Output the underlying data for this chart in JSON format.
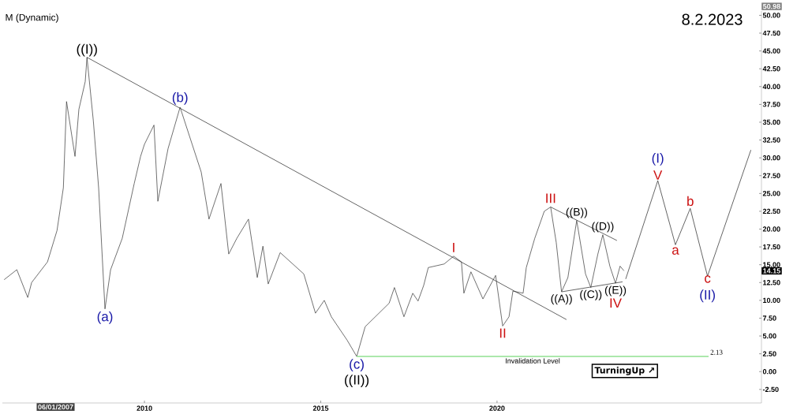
{
  "chart_data": {
    "type": "line",
    "title": "M (Dynamic)",
    "subtitle": "8.2.2023",
    "xlim": [
      2005.97,
      2027.5
    ],
    "ylim": [
      -4.4,
      50.6
    ],
    "xticks": [
      2010,
      2015,
      2020
    ],
    "yticks": [
      {
        "value": -2.5,
        "label": "-2.50"
      },
      {
        "value": 0,
        "label": "0.00"
      },
      {
        "value": 2.5,
        "label": "2.50"
      },
      {
        "value": 5,
        "label": "5.00"
      },
      {
        "value": 7.5,
        "label": "7.50"
      },
      {
        "value": 10,
        "label": "10.00"
      },
      {
        "value": 12.5,
        "label": "12.50"
      },
      {
        "value": 15,
        "label": "15.00"
      },
      {
        "value": 17.5,
        "label": "17.50"
      },
      {
        "value": 20,
        "label": "20.00"
      },
      {
        "value": 22.5,
        "label": "22.50"
      },
      {
        "value": 25,
        "label": "25.00"
      },
      {
        "value": 27.5,
        "label": "27.50"
      },
      {
        "value": 30,
        "label": "30.00"
      },
      {
        "value": 32.5,
        "label": "32.50"
      },
      {
        "value": 35,
        "label": "35.00"
      },
      {
        "value": 37.5,
        "label": "37.50"
      },
      {
        "value": 40,
        "label": "40.00"
      },
      {
        "value": 42.5,
        "label": "42.50"
      },
      {
        "value": 45,
        "label": "45.00"
      },
      {
        "value": 47.5,
        "label": "47.50"
      },
      {
        "value": 50,
        "label": "50.00"
      }
    ],
    "series": [
      {
        "color": "#333333",
        "x": [
          2006.02,
          2006.38,
          2006.69,
          2006.8,
          2007.25,
          2007.52,
          2007.7,
          2007.79,
          2008.03,
          2008.14,
          2008.32,
          2008.37,
          2008.55,
          2008.7,
          2008.88,
          2009.04,
          2009.37,
          2009.71,
          2009.89,
          2010.0,
          2010.27,
          2010.38,
          2010.67,
          2011.01,
          2011.28,
          2011.61,
          2011.83,
          2012.17,
          2012.39,
          2012.62,
          2012.95,
          2013.2,
          2013.36,
          2013.51,
          2013.85,
          2014.52,
          2014.85,
          2015.1,
          2015.3,
          2015.75,
          2016.02,
          2016.26,
          2016.94,
          2017.09,
          2017.36,
          2017.61,
          2017.76,
          2017.92,
          2018.05,
          2018.5,
          2018.77,
          2018.99,
          2019.06,
          2019.26,
          2019.6,
          2019.96,
          2020.16,
          2020.34,
          2020.45,
          2020.74,
          2020.83,
          2021.07,
          2021.34,
          2021.52,
          2021.68,
          2021.83,
          2022.01,
          2022.26,
          2022.51,
          2022.66,
          2022.86,
          2023.0,
          2023.2,
          2023.36,
          2023.49,
          2023.6
        ],
        "values": [
          12.9,
          14.3,
          10.4,
          12.5,
          15.4,
          19.8,
          25.8,
          37.9,
          30.2,
          36.8,
          40.7,
          44.1,
          35.2,
          25.8,
          8.8,
          14.3,
          18.7,
          26.4,
          30.2,
          31.9,
          34.6,
          23.9,
          31.3,
          37.1,
          33.0,
          28.0,
          21.4,
          26.4,
          16.5,
          18.7,
          21.4,
          13.2,
          17.6,
          12.3,
          16.7,
          13.7,
          8.2,
          10.0,
          7.7,
          4.4,
          2.13,
          6.3,
          9.6,
          11.8,
          7.7,
          11.0,
          9.9,
          12.1,
          14.6,
          15.1,
          16.2,
          15.4,
          11.0,
          14.0,
          10.2,
          13.5,
          6.4,
          7.7,
          11.3,
          11.0,
          14.6,
          18.7,
          22.5,
          23.1,
          18.1,
          11.2,
          13.2,
          21.2,
          13.7,
          11.8,
          16.5,
          19.2,
          14.8,
          12.4,
          14.8,
          14.15
        ]
      },
      {
        "color": "#222222",
        "x": [
          2023.65,
          2024.56,
          2025.06,
          2025.48,
          2025.97,
          2027.2
        ],
        "values": [
          13.0,
          26.8,
          17.8,
          22.9,
          13.4,
          31.1
        ]
      },
      {
        "color": "#222222",
        "x": [
          2008.37,
          2021.97
        ],
        "values": [
          44.1,
          7.3
        ]
      },
      {
        "color": "#222222",
        "x": [
          2021.52,
          2023.4
        ],
        "values": [
          23.1,
          18.4
        ]
      },
      {
        "color": "#222222",
        "x": [
          2021.83,
          2023.56
        ],
        "values": [
          11.2,
          12.6
        ]
      },
      {
        "name": "Invalidation Level",
        "color": "#90e090",
        "x": [
          2016.02,
          2026.0
        ],
        "values": [
          2.13,
          2.13
        ]
      }
    ],
    "annotations": [
      {
        "text": "((I))",
        "x": 2008.37,
        "y": 44.1
      },
      {
        "text": "(a)",
        "x": 2008.88,
        "y": 8.8
      },
      {
        "text": "(b)",
        "x": 2011.01,
        "y": 37.1
      },
      {
        "text": "(c)",
        "x": 2016.02,
        "y": 2.13
      },
      {
        "text": "((II))",
        "x": 2016.02,
        "y": 2.13
      },
      {
        "text": "I",
        "x": 2018.77,
        "y": 16.2
      },
      {
        "text": "II",
        "x": 2020.16,
        "y": 6.4
      },
      {
        "text": "III",
        "x": 2021.52,
        "y": 23.1
      },
      {
        "text": "((A))",
        "x": 2021.83,
        "y": 11.2
      },
      {
        "text": "((B))",
        "x": 2022.26,
        "y": 21.2
      },
      {
        "text": "((C))",
        "x": 2022.66,
        "y": 11.8
      },
      {
        "text": "((D))",
        "x": 2023.0,
        "y": 19.2
      },
      {
        "text": "((E))",
        "x": 2023.36,
        "y": 12.4
      },
      {
        "text": "IV",
        "x": 2023.36,
        "y": 12.4
      },
      {
        "text": "V",
        "x": 2024.56,
        "y": 26.8
      },
      {
        "text": "(I)",
        "x": 2024.56,
        "y": 26.8
      },
      {
        "text": "a",
        "x": 2025.06,
        "y": 17.8
      },
      {
        "text": "b",
        "x": 2025.48,
        "y": 22.9
      },
      {
        "text": "c",
        "x": 2025.97,
        "y": 13.4
      },
      {
        "text": "(II)",
        "x": 2025.97,
        "y": 13.4
      },
      {
        "text": "2.13",
        "x": 2026.0,
        "y": 2.13
      },
      "14.15",
      "50.98",
      "06/01/2007",
      "TurningUp ↗"
    ]
  }
}
